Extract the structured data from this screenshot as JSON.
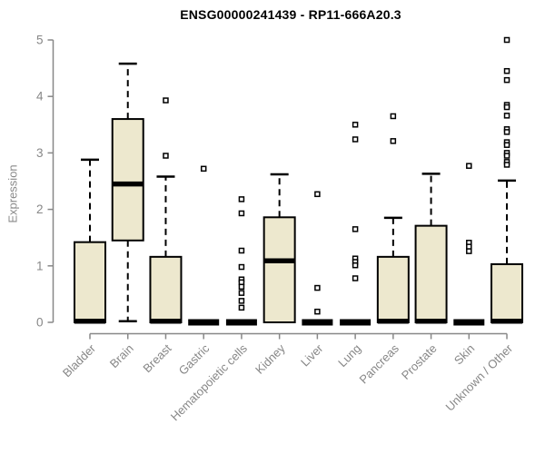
{
  "title": "ENSG00000241439 - RP11-666A20.3",
  "colors": {
    "box_fill": "#EDE8CE",
    "box_stroke": "#000000",
    "median": "#000000",
    "outlier_stroke": "#000000",
    "axis": "#888888",
    "tick_label": "#878787",
    "title": "#000000",
    "background": "#ffffff"
  },
  "chart_data": {
    "type": "boxplot",
    "title": "ENSG00000241439 - RP11-666A20.3",
    "ylabel": "Expression",
    "ylim": [
      0,
      5
    ],
    "yticks": [
      0,
      1,
      2,
      3,
      4,
      5
    ],
    "grid": false,
    "legend": false,
    "categories": [
      "Bladder",
      "Brain",
      "Breast",
      "Gastric",
      "Hematopoietic cells",
      "Kidney",
      "Liver",
      "Lung",
      "Pancreas",
      "Prostate",
      "Skin",
      "Unknown / Other"
    ],
    "series": [
      {
        "name": "Bladder",
        "low": 0,
        "q1": 0,
        "median": 0.02,
        "q3": 1.42,
        "high": 2.88,
        "outliers": []
      },
      {
        "name": "Brain",
        "low": 0.02,
        "q1": 1.45,
        "median": 2.45,
        "q3": 3.6,
        "high": 4.58,
        "outliers": []
      },
      {
        "name": "Breast",
        "low": 0,
        "q1": 0,
        "median": 0.02,
        "q3": 1.16,
        "high": 2.58,
        "outliers": [
          3.93,
          2.95
        ]
      },
      {
        "name": "Gastric",
        "low": 0,
        "q1": 0,
        "median": 0,
        "q3": 0,
        "high": 0,
        "outliers": [
          2.72
        ]
      },
      {
        "name": "Hematopoietic cells",
        "low": 0,
        "q1": 0,
        "median": 0,
        "q3": 0,
        "high": 0,
        "outliers": [
          2.18,
          1.93,
          1.27,
          0.98,
          0.76,
          0.71,
          0.63,
          0.52,
          0.38,
          0.26
        ]
      },
      {
        "name": "Kidney",
        "low": 0,
        "q1": 0,
        "median": 1.09,
        "q3": 1.86,
        "high": 2.62,
        "outliers": []
      },
      {
        "name": "Liver",
        "low": 0,
        "q1": 0,
        "median": 0,
        "q3": 0,
        "high": 0,
        "outliers": [
          2.27,
          0.61,
          0.19
        ]
      },
      {
        "name": "Lung",
        "low": 0,
        "q1": 0,
        "median": 0,
        "q3": 0,
        "high": 0,
        "outliers": [
          3.5,
          3.24,
          1.65,
          1.13,
          1.07,
          1.01,
          0.78
        ]
      },
      {
        "name": "Pancreas",
        "low": 0,
        "q1": 0,
        "median": 0.02,
        "q3": 1.16,
        "high": 1.85,
        "outliers": [
          3.65,
          3.21
        ]
      },
      {
        "name": "Prostate",
        "low": 0,
        "q1": 0,
        "median": 0.02,
        "q3": 1.71,
        "high": 2.63,
        "outliers": []
      },
      {
        "name": "Skin",
        "low": 0,
        "q1": 0,
        "median": 0,
        "q3": 0,
        "high": 0,
        "outliers": [
          2.77,
          1.41,
          1.34,
          1.26
        ]
      },
      {
        "name": "Unknown / Other",
        "low": 0,
        "q1": 0,
        "median": 0.02,
        "q3": 1.03,
        "high": 2.51,
        "outliers": [
          5.0,
          4.45,
          4.29,
          3.85,
          3.81,
          3.66,
          3.42,
          3.37,
          3.19,
          3.14,
          3.0,
          2.95,
          2.84,
          2.79
        ]
      }
    ]
  }
}
